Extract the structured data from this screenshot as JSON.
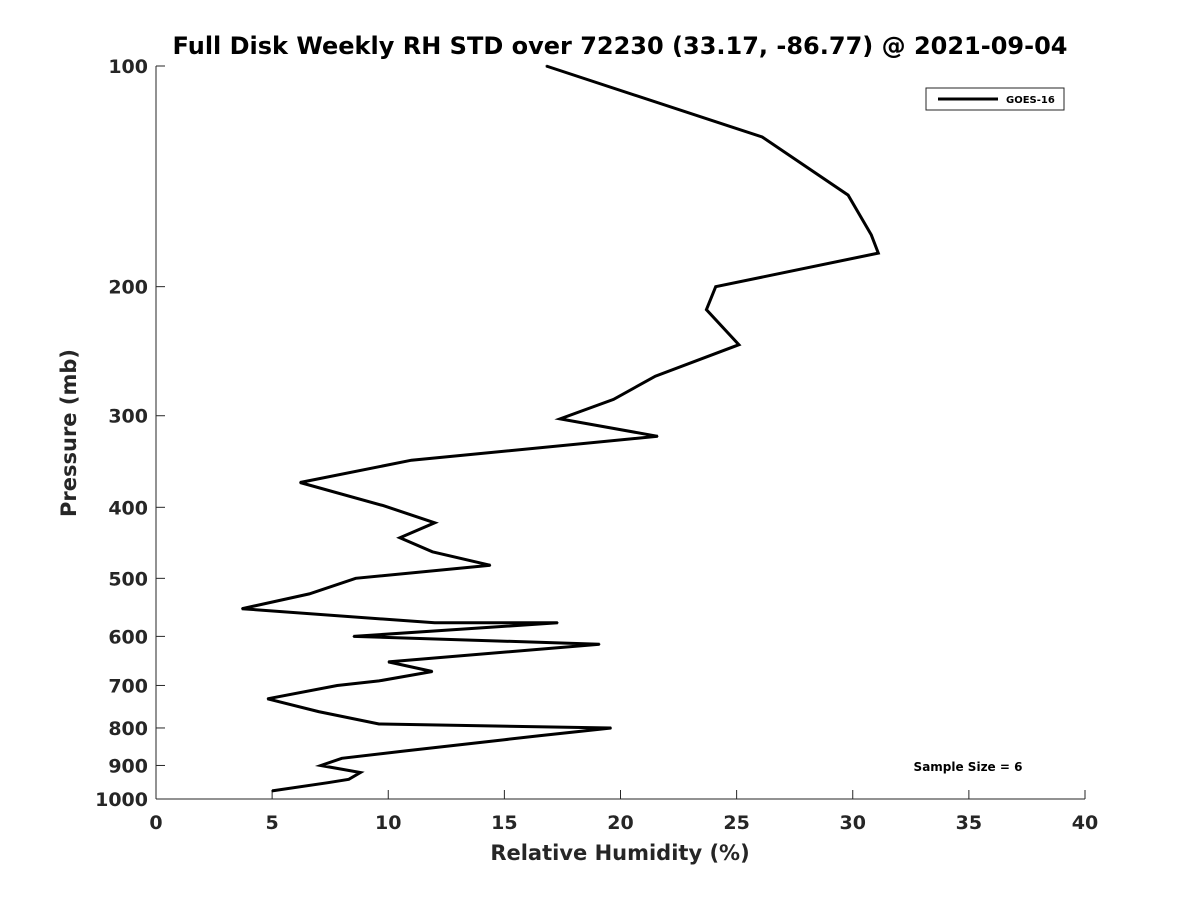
{
  "chart_data": {
    "type": "line",
    "title": "Full Disk Weekly RH STD over 72230 (33.17, -86.77) @ 2021-09-04",
    "xlabel": "Relative Humidity (%)",
    "ylabel": "Pressure (mb)",
    "xlim": [
      0,
      40
    ],
    "ylim": [
      100,
      1000
    ],
    "y_scale": "log",
    "y_reversed": true,
    "grid": false,
    "legend_position": "top-right",
    "x_ticks": [
      "0",
      "5",
      "10",
      "15",
      "20",
      "25",
      "30",
      "35",
      "40"
    ],
    "y_ticks": [
      "100",
      "200",
      "300",
      "400",
      "500",
      "600",
      "700",
      "800",
      "900",
      "1000"
    ],
    "series": [
      {
        "name": "GOES-16",
        "color": "#000000",
        "x": [
          16.8,
          26.1,
          29.8,
          30.8,
          31.1,
          24.1,
          23.7,
          25.1,
          21.5,
          19.7,
          17.4,
          21.6,
          11.0,
          6.2,
          9.8,
          12.0,
          10.5,
          11.9,
          14.4,
          8.6,
          6.6,
          3.7,
          12.0,
          17.3,
          8.5,
          19.1,
          10.0,
          11.9,
          9.6,
          7.8,
          4.8,
          7.0,
          9.6,
          19.6,
          16.5,
          15.0,
          10.7,
          8.0,
          7.1,
          8.8,
          8.3,
          7.4,
          5.0
        ],
        "y": [
          100,
          125,
          150,
          170,
          180,
          200,
          215,
          240,
          265,
          285,
          303,
          320,
          345,
          370,
          398,
          420,
          440,
          460,
          480,
          500,
          525,
          550,
          575,
          575,
          600,
          615,
          650,
          670,
          690,
          700,
          730,
          760,
          790,
          800,
          820,
          830,
          860,
          880,
          900,
          920,
          940,
          950,
          975
        ]
      }
    ],
    "annotations": [
      "Sample Size = 6"
    ]
  }
}
